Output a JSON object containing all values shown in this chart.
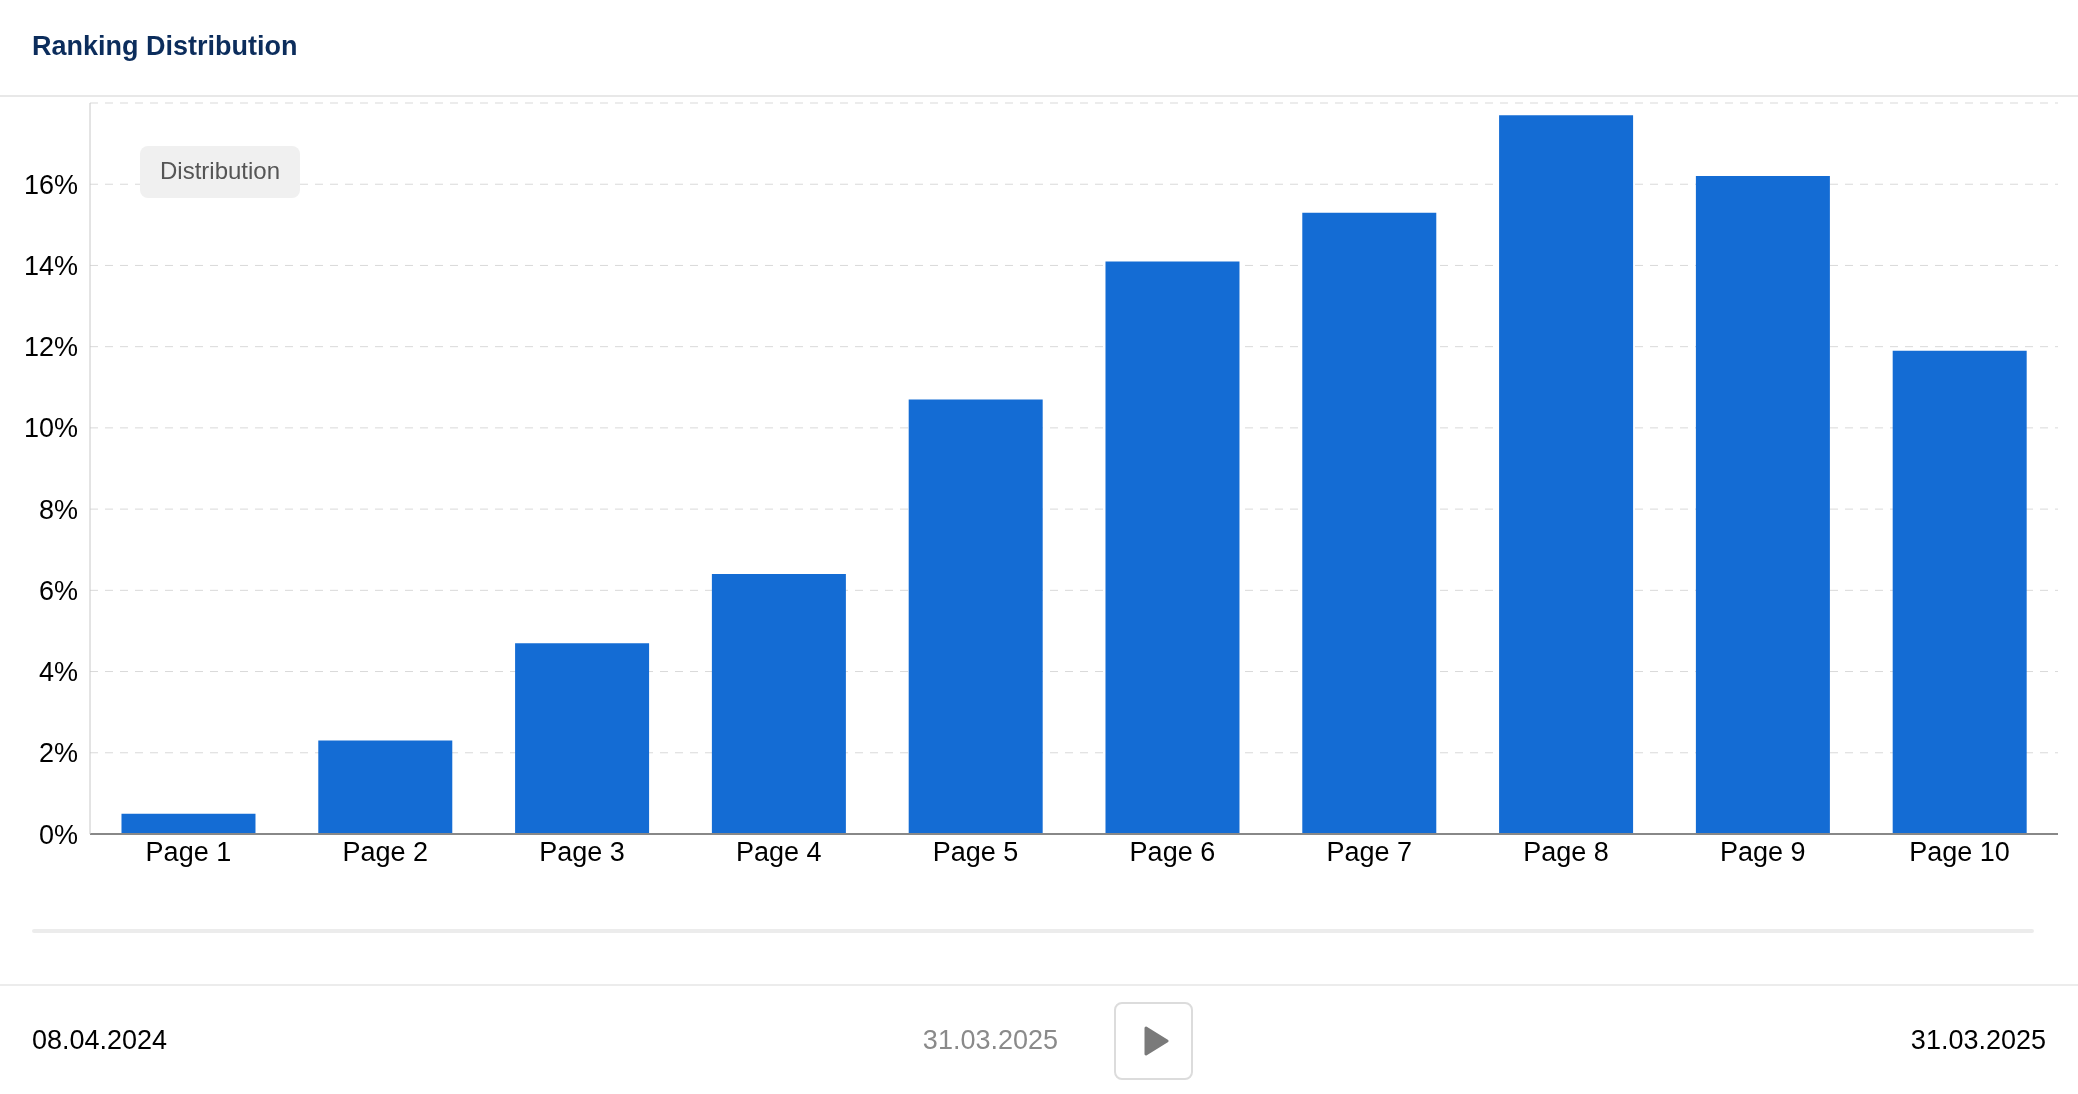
{
  "chart_data": {
    "type": "bar",
    "title": "Ranking Distribution",
    "legend_title": "Distribution",
    "categories": [
      "Page 1",
      "Page 2",
      "Page 3",
      "Page 4",
      "Page 5",
      "Page 6",
      "Page 7",
      "Page 8",
      "Page 9",
      "Page 10"
    ],
    "series": [
      {
        "color": "#146cd4",
        "values": [
          0.5,
          2.3,
          4.7,
          6.4,
          10.7,
          14.1,
          15.3,
          17.7,
          16.2,
          11.9
        ]
      }
    ],
    "ylim": [
      0,
      18
    ],
    "yticks": [
      {
        "value": 0,
        "label": "0%"
      },
      {
        "value": 2,
        "label": "2%"
      },
      {
        "value": 4,
        "label": "4%"
      },
      {
        "value": 6,
        "label": "6%"
      },
      {
        "value": 8,
        "label": "8%"
      },
      {
        "value": 10,
        "label": "10%"
      },
      {
        "value": 12,
        "label": "12%"
      },
      {
        "value": 14,
        "label": "14%"
      },
      {
        "value": 16,
        "label": "16%"
      }
    ],
    "grid": "y",
    "annotations": [
      "08.04.2024",
      "31.03.2025",
      "31.03.2025"
    ]
  }
}
